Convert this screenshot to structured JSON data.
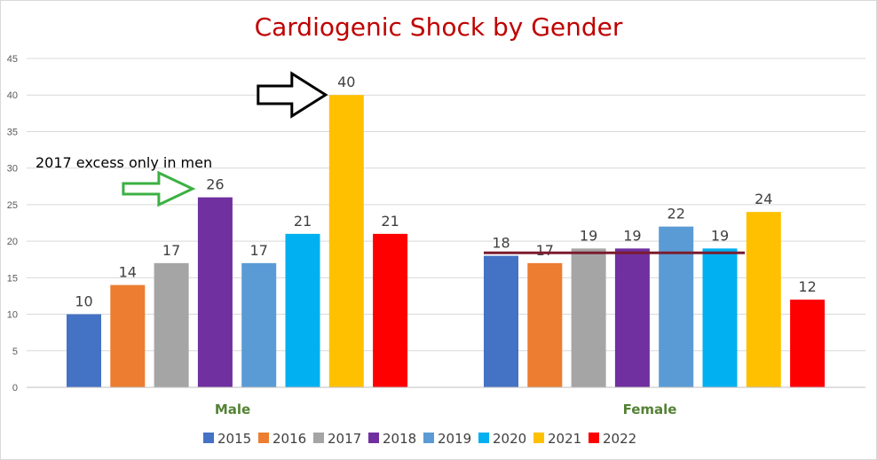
{
  "chart_data": {
    "type": "bar",
    "title": "Cardiogenic Shock by Gender",
    "categories": [
      "Male",
      "Female"
    ],
    "series": [
      {
        "name": "2015",
        "values": [
          10,
          18
        ],
        "color": "#4472c4"
      },
      {
        "name": "2016",
        "values": [
          14,
          17
        ],
        "color": "#ed7d31"
      },
      {
        "name": "2017",
        "values": [
          17,
          19
        ],
        "color": "#a5a5a5"
      },
      {
        "name": "2018",
        "values": [
          26,
          19
        ],
        "color": "#7030a0"
      },
      {
        "name": "2019",
        "values": [
          17,
          22
        ],
        "color": "#5b9bd5"
      },
      {
        "name": "2020",
        "values": [
          21,
          19
        ],
        "color": "#00b0f0"
      },
      {
        "name": "2021",
        "values": [
          40,
          24
        ],
        "color": "#ffc000"
      },
      {
        "name": "2022",
        "values": [
          21,
          12
        ],
        "color": "#ff0000"
      }
    ],
    "ylim": [
      0,
      45
    ],
    "yticks": [
      0,
      5,
      10,
      15,
      20,
      25,
      30,
      35,
      40,
      45
    ],
    "grid": true,
    "legend": "bottom",
    "category_label_color": "#548235",
    "annotations": {
      "text": "2017 excess only in men",
      "green_arrow_target": {
        "category": "Male",
        "series": "2018"
      },
      "black_arrow_target": {
        "category": "Male",
        "series": "2021"
      },
      "female_reference_line": {
        "value": 18.4,
        "color": "#7b1c2e"
      }
    }
  }
}
